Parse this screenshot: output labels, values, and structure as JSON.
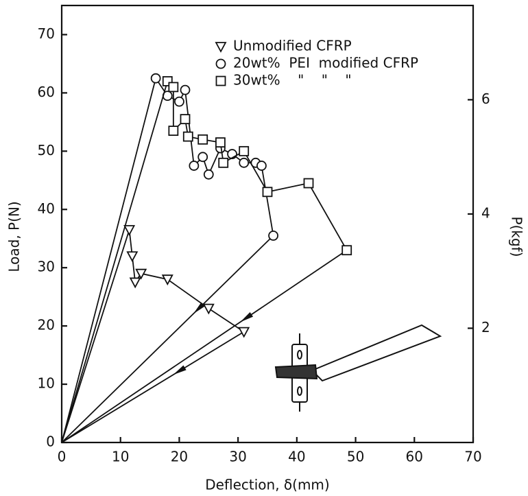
{
  "chart_data": {
    "type": "line",
    "x_label": "Deflection,  δ(mm)",
    "y_label": "Load,  P(N)",
    "y2_label": "P(kgf)",
    "xlim": [
      0,
      70
    ],
    "xticks": [
      0,
      10,
      20,
      30,
      40,
      50,
      60,
      70
    ],
    "ylim": [
      0,
      75
    ],
    "yticks": [
      0,
      10,
      20,
      30,
      40,
      50,
      60,
      70
    ],
    "y2lim": [
      0,
      7.65
    ],
    "y2ticks": [
      2,
      4,
      6
    ],
    "legend": "top",
    "series": [
      {
        "name": "Unmodified CFRP",
        "marker": "triangle",
        "color": "#111111",
        "x": [
          11.5,
          12,
          12.5,
          13.5,
          18,
          25,
          31
        ],
        "values": [
          36.5,
          32,
          27.5,
          29,
          28,
          23,
          19
        ]
      },
      {
        "name": "20wt%  PEI  modified CFRP",
        "marker": "circle",
        "color": "#111111",
        "x": [
          16,
          18,
          20,
          21,
          22.5,
          24,
          25,
          27,
          29,
          31,
          33,
          34,
          36
        ],
        "values": [
          62.5,
          59.5,
          58.5,
          60.5,
          47.5,
          49,
          46,
          50.5,
          49.5,
          48,
          48,
          47.5,
          35.5
        ]
      },
      {
        "name": "30wt%    \"    \"    \"",
        "marker": "square",
        "color": "#111111",
        "x": [
          18,
          19,
          19,
          21,
          21.5,
          24,
          27,
          27.5,
          31,
          35,
          42,
          48.5
        ],
        "values": [
          62,
          61,
          53.5,
          55.5,
          52.5,
          52,
          51.5,
          48,
          50,
          43,
          44.5,
          33
        ]
      }
    ]
  }
}
